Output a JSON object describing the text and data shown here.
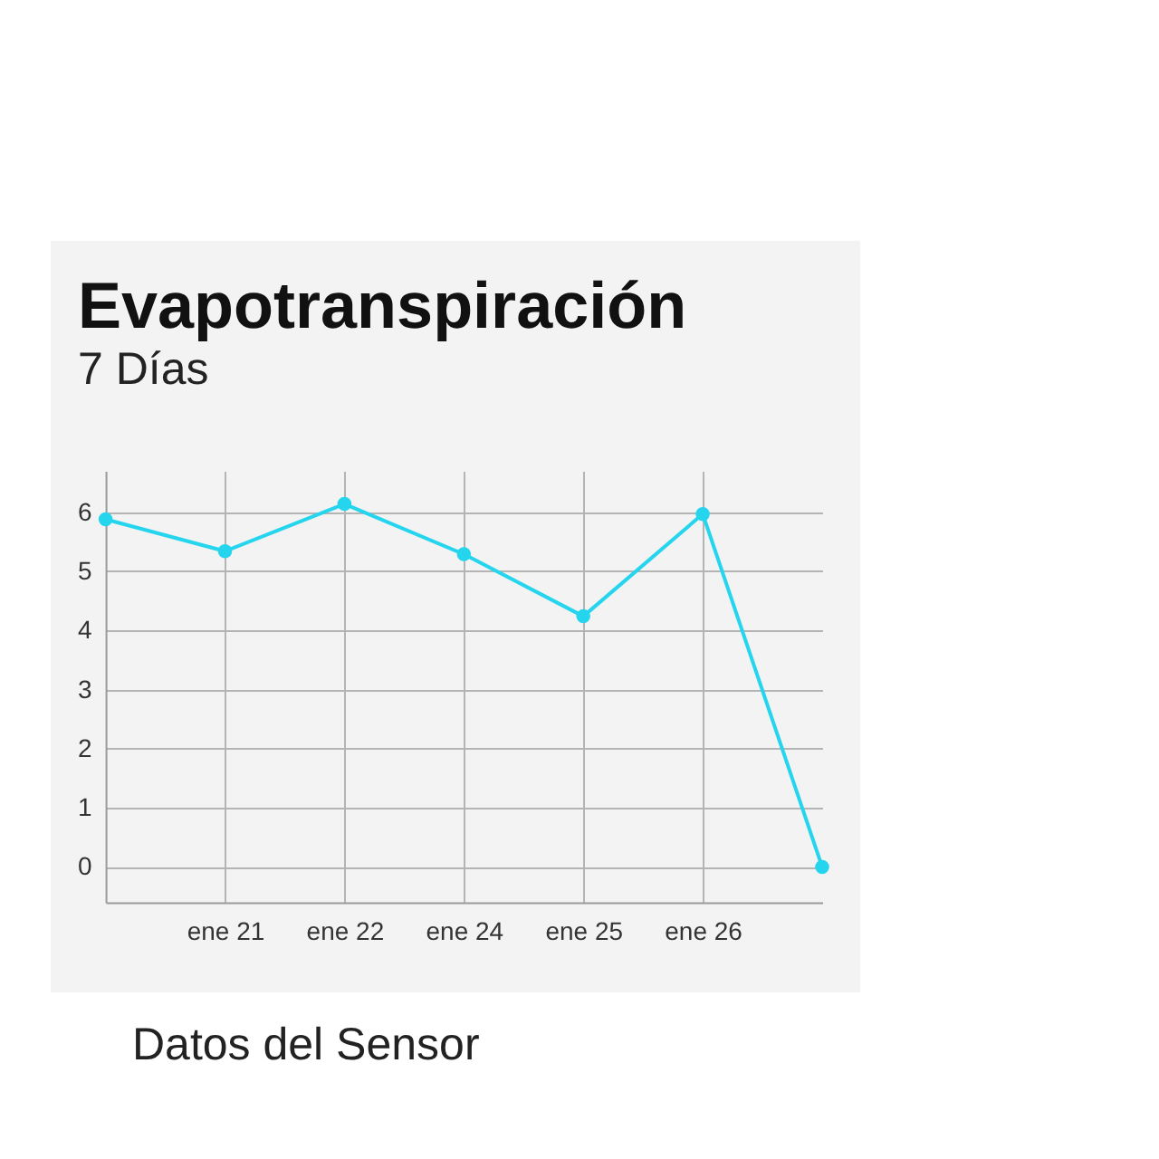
{
  "chart_data": {
    "type": "line",
    "title": "Evapotranspiración",
    "subtitle": "7 Días",
    "annotations": [
      "Datos del Sensor"
    ],
    "categories": [
      null,
      "ene 21",
      "ene 22",
      "ene 24",
      "ene 25",
      "ene 26",
      null
    ],
    "series": [
      {
        "color": "#25d5ee",
        "values": [
          5.88,
          5.34,
          6.14,
          5.29,
          4.24,
          5.97,
          0
        ]
      }
    ],
    "ylim": [
      -0.6,
      6.7
    ],
    "yticks": [
      0,
      1,
      2,
      3,
      4,
      5,
      6
    ],
    "grid": true,
    "marker": "circle",
    "line_style": "solid"
  }
}
